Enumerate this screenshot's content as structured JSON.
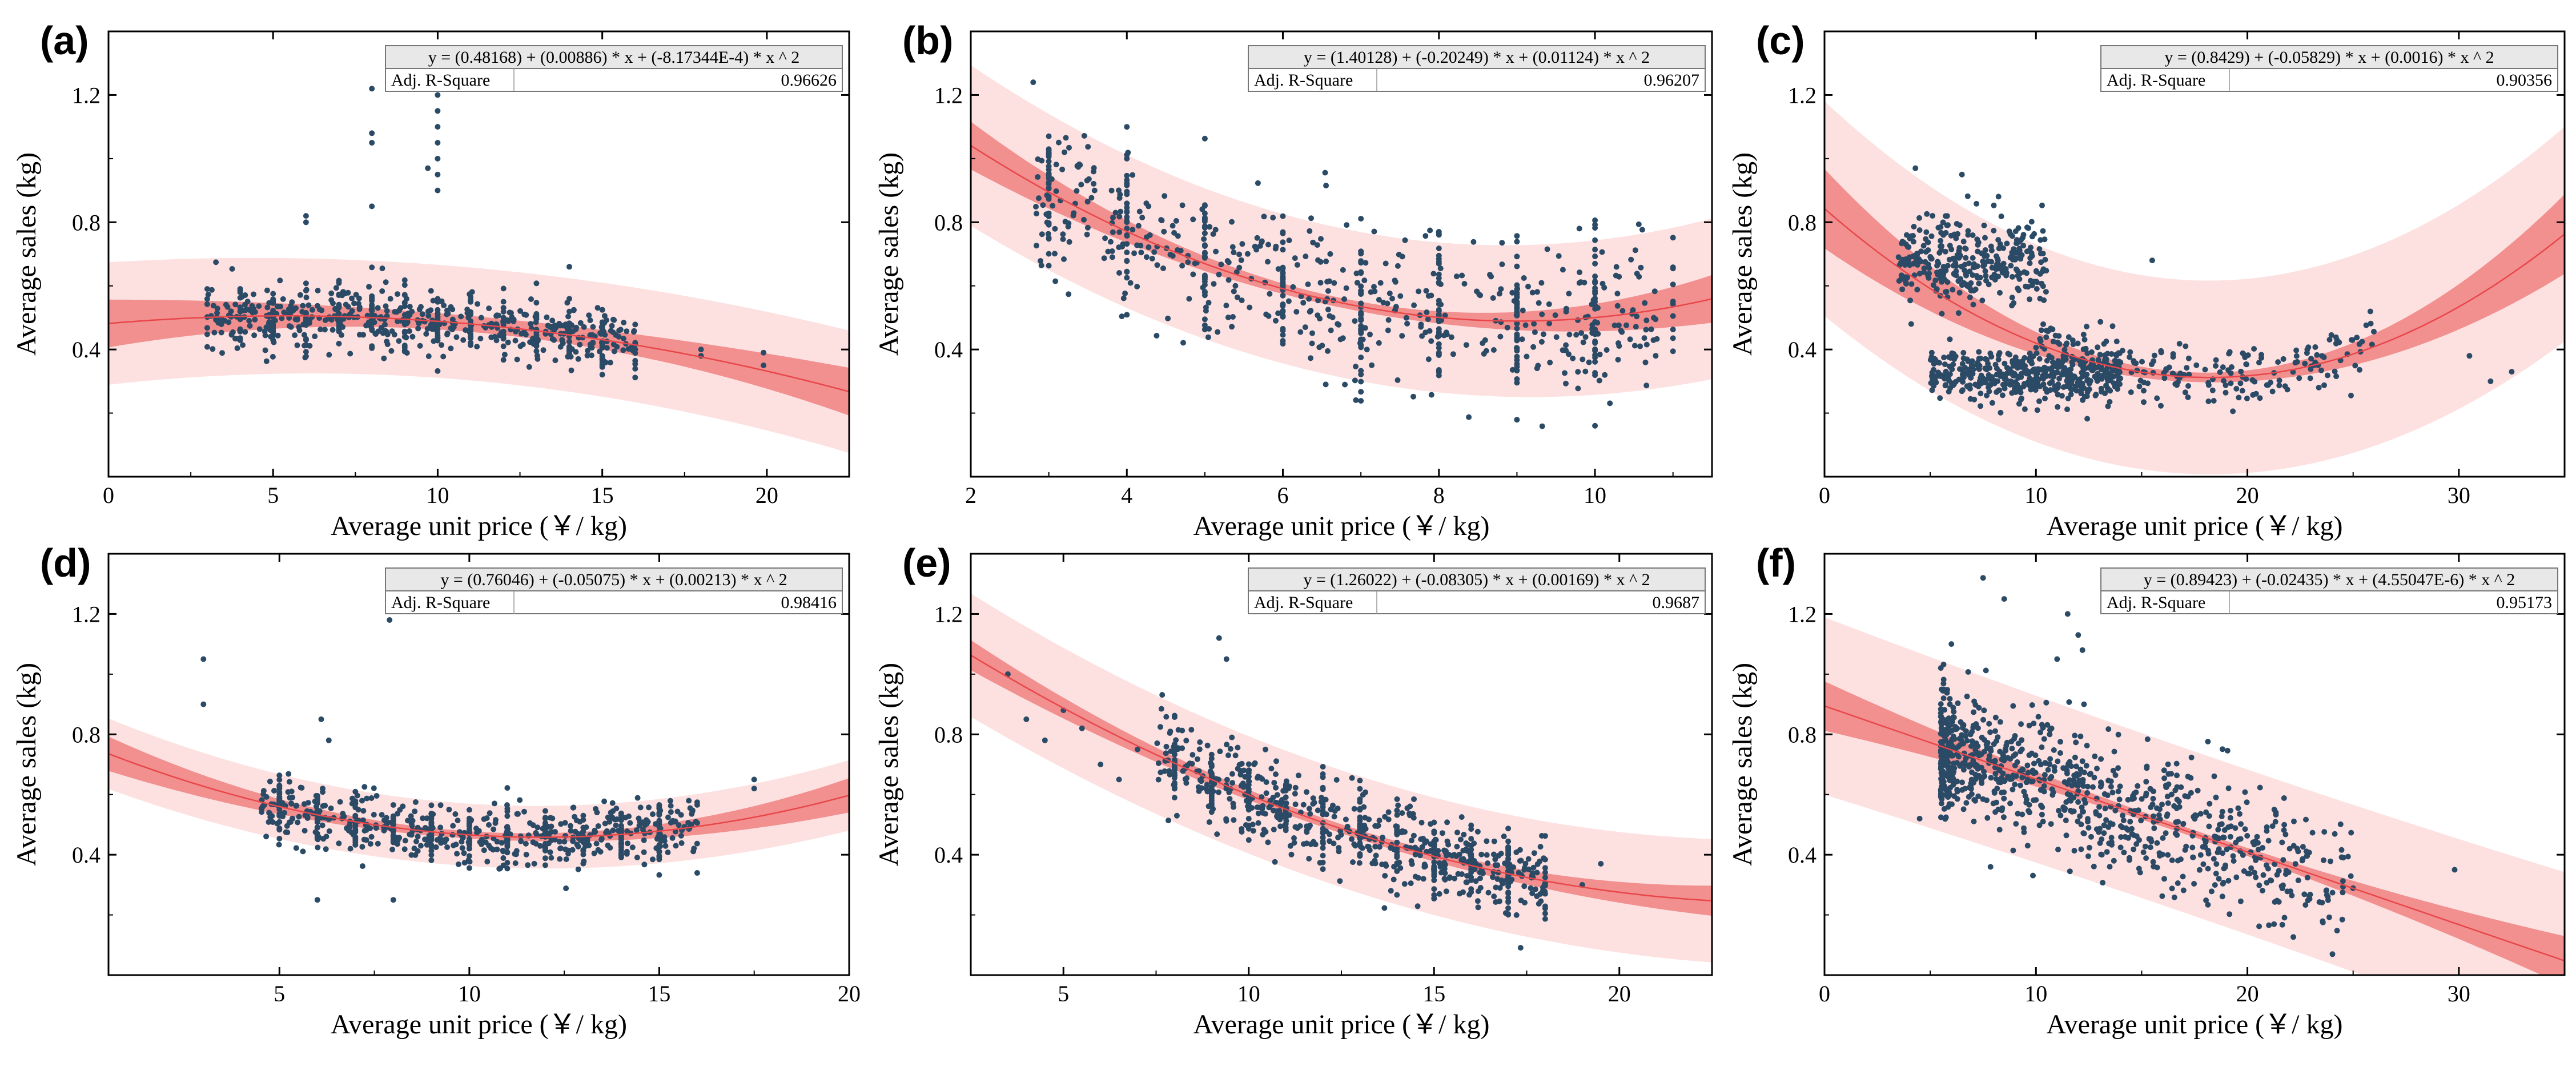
{
  "chart_data": [
    {
      "type": "scatter",
      "panel": "(a)",
      "xlabel": "Average unit price (￥/ kg)",
      "ylabel": "Average sales (kg)",
      "xlim": [
        0,
        22.5
      ],
      "ylim": [
        0,
        1.4
      ],
      "xticks": [
        0,
        5,
        10,
        15,
        20
      ],
      "yticks": [
        0.4,
        0.8,
        1.2
      ],
      "equation": "y = (0.48168) + (0.00886) * x + (-8.17344E-4) * x ^ 2",
      "r2_label": "Adj. R-Square",
      "r2_value": "0.96626",
      "coef": [
        0.48168,
        0.00886,
        -0.000817344
      ],
      "band": {
        "conf": 0.025,
        "conf_growth": 0.05,
        "pred": 0.17
      },
      "cluster": {
        "x0": 3,
        "x1": 16,
        "dist": "uniform",
        "n": 700,
        "spread": 0.05,
        "seed": 11
      },
      "outliers": [
        [
          8,
          1.22
        ],
        [
          8,
          1.05
        ],
        [
          8,
          1.08
        ],
        [
          10,
          1.2
        ],
        [
          10,
          1.15
        ],
        [
          10,
          1.1
        ],
        [
          10,
          1.05
        ],
        [
          10,
          1.0
        ],
        [
          10,
          0.95
        ],
        [
          10,
          0.9
        ],
        [
          6,
          0.82
        ],
        [
          6,
          0.8
        ],
        [
          8,
          0.85
        ],
        [
          9.7,
          0.97
        ],
        [
          14,
          0.66
        ],
        [
          18,
          0.38
        ],
        [
          18,
          0.4
        ],
        [
          19.9,
          0.35
        ],
        [
          19.9,
          0.39
        ],
        [
          16,
          0.4
        ]
      ]
    },
    {
      "type": "scatter",
      "panel": "(b)",
      "xlabel": "Average unit price (￥/ kg)",
      "ylabel": "Average sales (kg)",
      "xlim": [
        2,
        11.5
      ],
      "ylim": [
        0,
        1.4
      ],
      "xticks": [
        2,
        4,
        6,
        8,
        10
      ],
      "yticks": [
        0.4,
        0.8,
        1.2
      ],
      "equation": "y = (1.40128) + (-0.20249) * x + (0.01124) * x ^ 2",
      "r2_label": "Adj. R-Square",
      "r2_value": "0.96207",
      "coef": [
        1.40128,
        -0.20249,
        0.01124
      ],
      "band": {
        "conf": 0.015,
        "conf_growth": 0.06,
        "pred": 0.23
      },
      "cluster": {
        "x0": 2.8,
        "x1": 10.8,
        "dist": "uniform",
        "n": 750,
        "spread": 0.12,
        "seed": 23
      },
      "outliers": [
        [
          2.8,
          1.24
        ],
        [
          3.2,
          1.02
        ],
        [
          3.4,
          0.98
        ],
        [
          4,
          1.0
        ],
        [
          9.8,
          0.78
        ],
        [
          10.3,
          0.42
        ]
      ]
    },
    {
      "type": "scatter",
      "panel": "(c)",
      "xlabel": "Average unit price (￥/ kg)",
      "ylabel": "Average sales (kg)",
      "xlim": [
        0,
        35
      ],
      "ylim": [
        0,
        1.4
      ],
      "xticks": [
        0,
        10,
        20,
        30
      ],
      "yticks": [
        0.4,
        0.8,
        1.2
      ],
      "equation": "y = (0.8429) + (-0.05829) * x + (0.0016) * x ^ 2",
      "r2_label": "Adj. R-Square",
      "r2_value": "0.90356",
      "coef": [
        0.8429,
        -0.05829,
        0.0016
      ],
      "band": {
        "conf": 0.015,
        "conf_growth": 0.11,
        "pred": 0.3
      },
      "clusters": [
        {
          "x0": 3.5,
          "x1": 10.5,
          "ymean": 0.68,
          "spread": 0.07,
          "n": 320,
          "seed": 31
        },
        {
          "x0": 5,
          "x1": 14,
          "ymean": 0.32,
          "spread": 0.04,
          "n": 420,
          "seed": 37
        },
        {
          "x0": 10,
          "x1": 26,
          "follow": true,
          "spread": 0.05,
          "n": 230,
          "seed": 41
        }
      ],
      "outliers": [
        [
          4.3,
          0.97
        ],
        [
          6.5,
          0.95
        ],
        [
          15.5,
          0.68
        ],
        [
          30.5,
          0.38
        ],
        [
          31.5,
          0.3
        ],
        [
          32.5,
          0.33
        ]
      ]
    },
    {
      "type": "scatter",
      "panel": "(d)",
      "xlabel": "Average unit price (￥/ kg)",
      "ylabel": "Average sales (kg)",
      "xlim": [
        0.5,
        20
      ],
      "ylim": [
        0,
        1.4
      ],
      "xticks": [
        5,
        10,
        15,
        20
      ],
      "yticks": [
        0.4,
        0.8,
        1.2
      ],
      "equation": "y = (0.76046) + (-0.05075) * x + (0.00213) * x ^ 2",
      "r2_label": "Adj. R-Square",
      "r2_value": "0.98416",
      "coef": [
        0.76046,
        -0.05075,
        0.00213
      ],
      "band": {
        "conf": 0.012,
        "conf_growth": 0.045,
        "pred": 0.1
      },
      "cluster": {
        "x0": 4.5,
        "x1": 16,
        "dist": "uniform",
        "n": 700,
        "spread": 0.05,
        "seed": 53
      },
      "outliers": [
        [
          3,
          1.05
        ],
        [
          3,
          0.9
        ],
        [
          7.9,
          1.18
        ],
        [
          6.1,
          0.85
        ],
        [
          6.3,
          0.78
        ],
        [
          6,
          0.25
        ],
        [
          8,
          0.25
        ],
        [
          17.5,
          0.62
        ],
        [
          17.5,
          0.65
        ]
      ]
    },
    {
      "type": "scatter",
      "panel": "(e)",
      "xlabel": "Average unit price (￥/ kg)",
      "ylabel": "Average sales (kg)",
      "xlim": [
        2.5,
        22.5
      ],
      "ylim": [
        0,
        1.4
      ],
      "xticks": [
        5,
        10,
        15,
        20
      ],
      "yticks": [
        0.4,
        0.8,
        1.2
      ],
      "equation": "y = (1.26022) + (-0.08305) * x + (0.00169) * x ^ 2",
      "r2_label": "Adj. R-Square",
      "r2_value": "0.9687",
      "coef": [
        1.26022,
        -0.08305,
        0.00169
      ],
      "band": {
        "conf": 0.015,
        "conf_growth": 0.035,
        "pred": 0.19
      },
      "cluster": {
        "x0": 7.5,
        "x1": 18,
        "dist": "uniform",
        "n": 750,
        "spread": 0.07,
        "seed": 61
      },
      "outliers": [
        [
          3.5,
          1.0
        ],
        [
          4,
          0.85
        ],
        [
          4.5,
          0.78
        ],
        [
          5,
          0.88
        ],
        [
          5.5,
          0.82
        ],
        [
          6,
          0.7
        ],
        [
          6.5,
          0.65
        ],
        [
          7,
          0.75
        ],
        [
          9.2,
          1.12
        ],
        [
          9.4,
          1.05
        ],
        [
          19,
          0.3
        ],
        [
          19.5,
          0.37
        ]
      ]
    },
    {
      "type": "scatter",
      "panel": "(f)",
      "xlabel": "Average unit price (￥/ kg)",
      "ylabel": "Average sales (kg)",
      "xlim": [
        0,
        35
      ],
      "ylim": [
        0,
        1.4
      ],
      "xticks": [
        0,
        10,
        20,
        30
      ],
      "yticks": [
        0.4,
        0.8,
        1.2
      ],
      "equation": "y = (0.89423) + (-0.02435) * x + (4.55047E-6) * x ^ 2",
      "r2_label": "Adj. R-Square",
      "r2_value": "0.95173",
      "coef": [
        0.89423,
        -0.02435,
        4.55047e-06
      ],
      "band": {
        "conf": 0.012,
        "conf_growth": 0.07,
        "pred": 0.27
      },
      "cluster": {
        "x0": 5.5,
        "x1": 25,
        "dist": "skew",
        "n": 900,
        "spread": 0.11,
        "seed": 71
      },
      "outliers": [
        [
          7.5,
          1.32
        ],
        [
          8.5,
          1.25
        ],
        [
          11.5,
          1.2
        ],
        [
          12,
          1.13
        ],
        [
          6,
          1.1
        ],
        [
          12.2,
          1.08
        ],
        [
          11,
          1.05
        ],
        [
          29.8,
          0.35
        ],
        [
          4.5,
          0.52
        ],
        [
          22,
          0.42
        ]
      ]
    }
  ],
  "colors": {
    "scatter": "#2b4a66",
    "fit": "#e8474a",
    "conf_band": "#f08080",
    "pred_band": "#fde1e1",
    "axis": "#000000",
    "box_header": "#e8e8e8"
  }
}
